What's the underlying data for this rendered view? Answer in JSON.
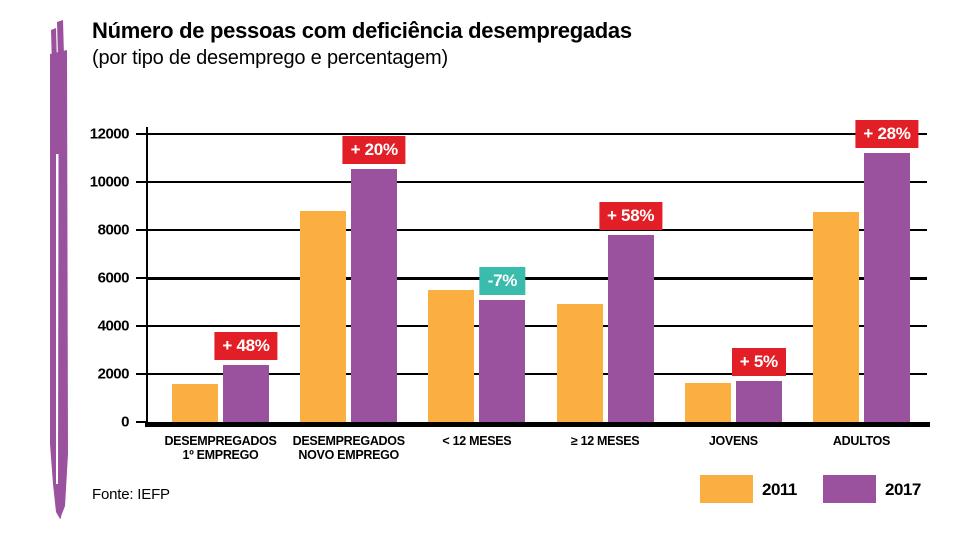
{
  "header": {
    "title": "Número de pessoas com deficiência desempregadas",
    "subtitle": "(por tipo de desemprego e percentagem)"
  },
  "footer": {
    "source_label": "Fonte: IEFP"
  },
  "colors": {
    "orange_2011": "#FAAF40",
    "purple_2017": "#9B529E",
    "badge_increase_red": "#E21F26",
    "badge_decrease_teal": "#3ABCAD",
    "axis_black": "#000000"
  },
  "chart_data": {
    "type": "bar",
    "title": "Número de pessoas com deficiência desempregadas",
    "subtitle": "(por tipo de desemprego e percentagem)",
    "categories": [
      "DESEMPREGADOS\n1º EMPREGO",
      "DESEMPREGADOS\nNOVO EMPREGO",
      "< 12 MESES",
      "≥ 12 MESES",
      "JOVENS",
      "ADULTOS"
    ],
    "series": [
      {
        "name": "2011",
        "color": "#FAAF40",
        "values": [
          1600,
          8800,
          5480,
          4930,
          1630,
          8750
        ]
      },
      {
        "name": "2017",
        "color": "#9B529E",
        "values": [
          2370,
          10550,
          5100,
          7790,
          1710,
          11200
        ]
      }
    ],
    "annotations": [
      {
        "label": "+ 48%",
        "change": "increase",
        "color": "#E21F26"
      },
      {
        "label": "+ 20%",
        "change": "increase",
        "color": "#E21F26"
      },
      {
        "label": "-7%",
        "change": "decrease",
        "color": "#3ABCAD"
      },
      {
        "label": "+ 58%",
        "change": "increase",
        "color": "#E21F26"
      },
      {
        "label": "+ 5%",
        "change": "increase",
        "color": "#E21F26"
      },
      {
        "label": "+ 28%",
        "change": "increase",
        "color": "#E21F26"
      }
    ],
    "ylim": [
      0,
      12000
    ],
    "yticks": [
      0,
      2000,
      4000,
      6000,
      8000,
      10000,
      12000
    ],
    "grid": true,
    "legend_position": "bottom-right",
    "source": "Fonte: IEFP"
  }
}
